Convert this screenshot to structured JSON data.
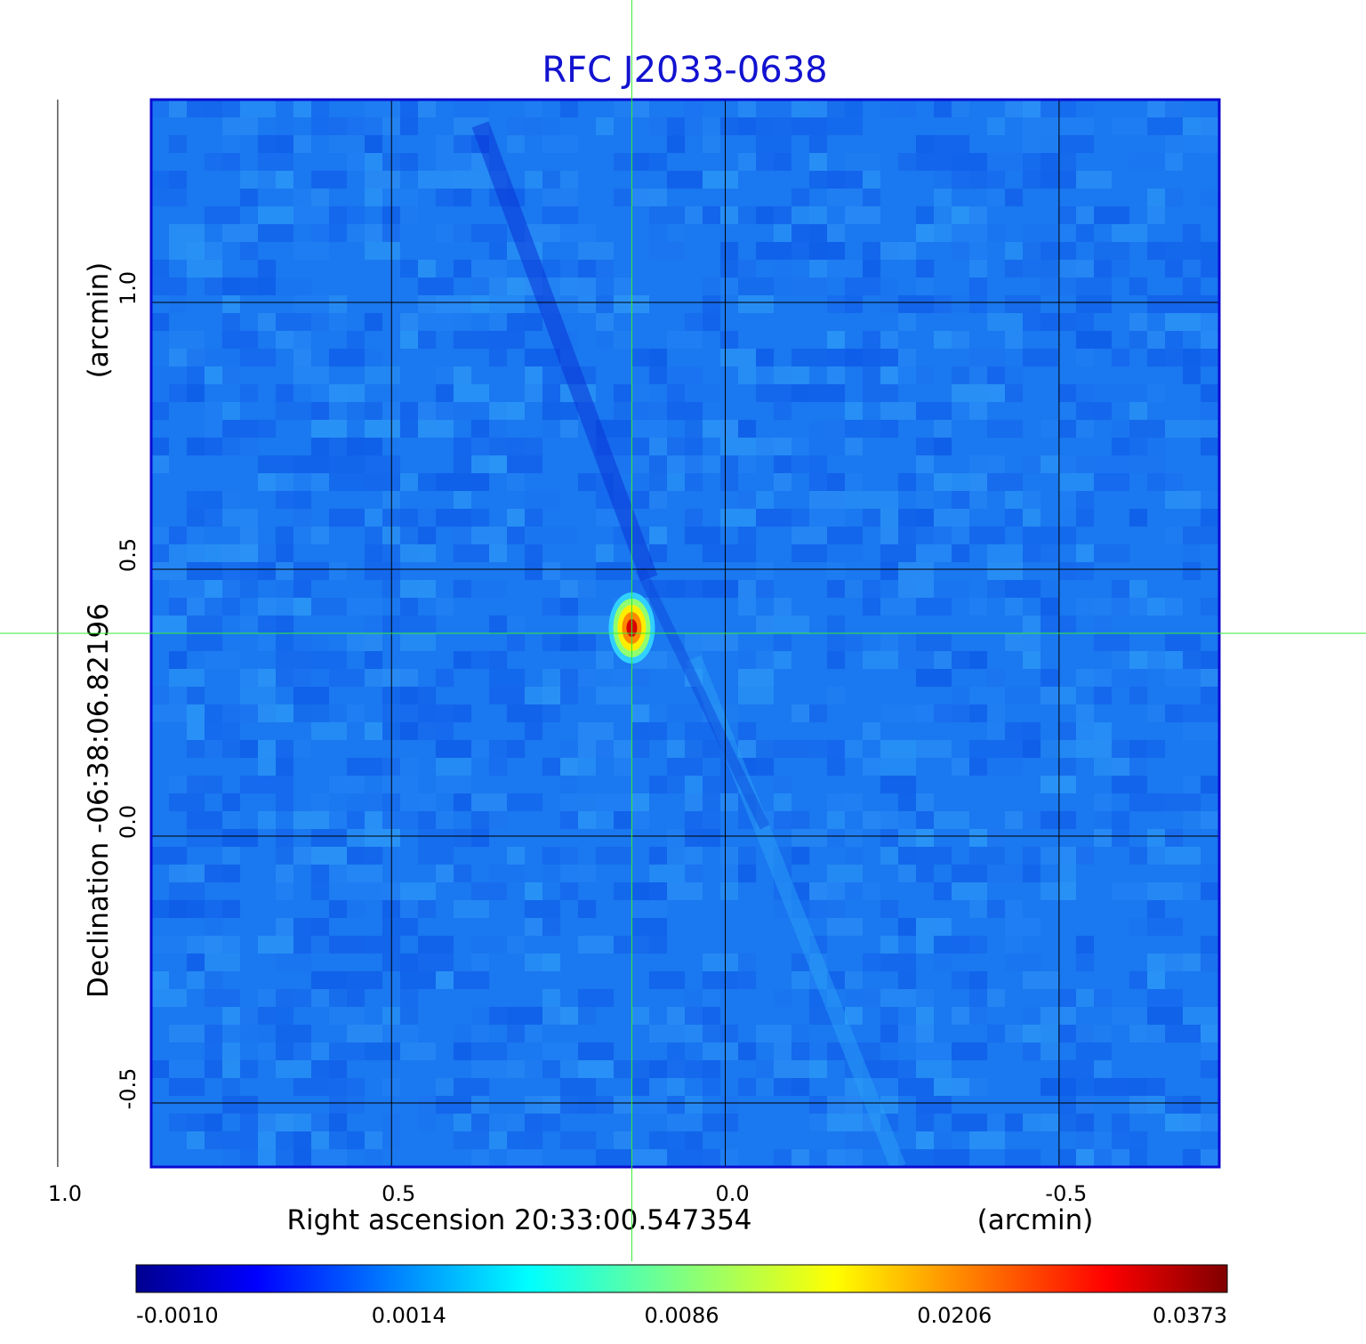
{
  "chart_data": {
    "type": "heatmap",
    "title": "RFC J2033-0638",
    "xlabel": "Right ascension  20:33:00.547354",
    "xunit": "(arcmin)",
    "ylabel": "Declination  -06:38:06.82196",
    "yunit": "(arcmin)",
    "x_range": [
      0.86,
      -0.74
    ],
    "y_range": [
      -0.62,
      1.38
    ],
    "x_ticks": [
      1.0,
      0.5,
      0.0,
      -0.5
    ],
    "x_tick_labels": [
      "1.0",
      "0.5",
      "0.0",
      "-0.5"
    ],
    "y_ticks": [
      1.0,
      0.5,
      0.0,
      -0.5
    ],
    "y_tick_labels": [
      "1.0",
      "0.5",
      "0.0",
      "-0.5"
    ],
    "grid": true,
    "crosshair": {
      "x": 0.14,
      "y": 0.38
    },
    "peak": {
      "x": 0.14,
      "y": 0.39,
      "value": 0.0373
    },
    "colorbar": {
      "ticks": [
        -0.001,
        0.0014,
        0.0086,
        0.0206,
        0.0373
      ],
      "tick_labels": [
        "-0.0010",
        "0.0014",
        "0.0086",
        "0.0206",
        "0.0373"
      ],
      "colormap": "jet"
    },
    "colors": {
      "title": "#1212d0",
      "crosshair": "#33ee33",
      "frame": "#0b0bd0",
      "grid": "#000000"
    }
  }
}
